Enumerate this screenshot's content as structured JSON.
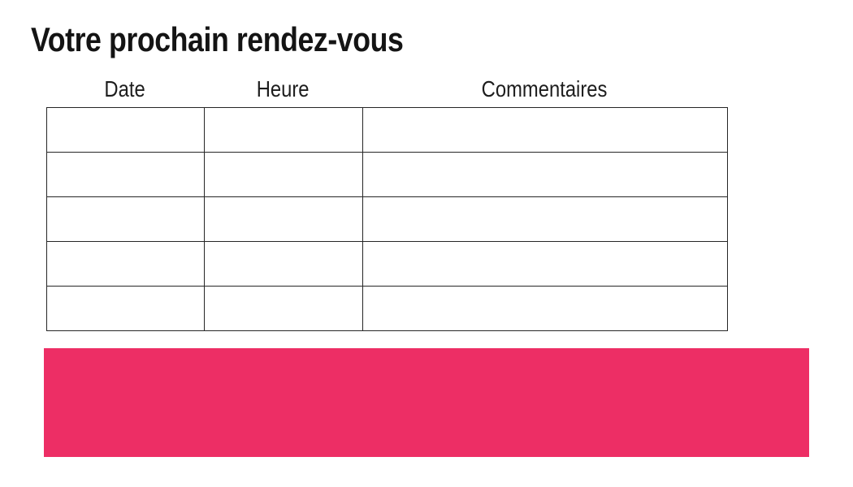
{
  "page": {
    "title": "Votre prochain rendez-vous",
    "background": "#ffffff"
  },
  "table": {
    "headers": [
      "Date",
      "Heure",
      "Commentaires"
    ],
    "rows": [
      [
        "",
        "",
        ""
      ],
      [
        "",
        "",
        ""
      ],
      [
        "",
        "",
        ""
      ],
      [
        "",
        "",
        ""
      ],
      [
        "",
        "",
        ""
      ]
    ]
  },
  "banner": {
    "text": "",
    "color": "#ED2E65"
  },
  "colors": {
    "accent_pink": "#ED2E65",
    "text": "#141414",
    "table_border": "#262626"
  }
}
